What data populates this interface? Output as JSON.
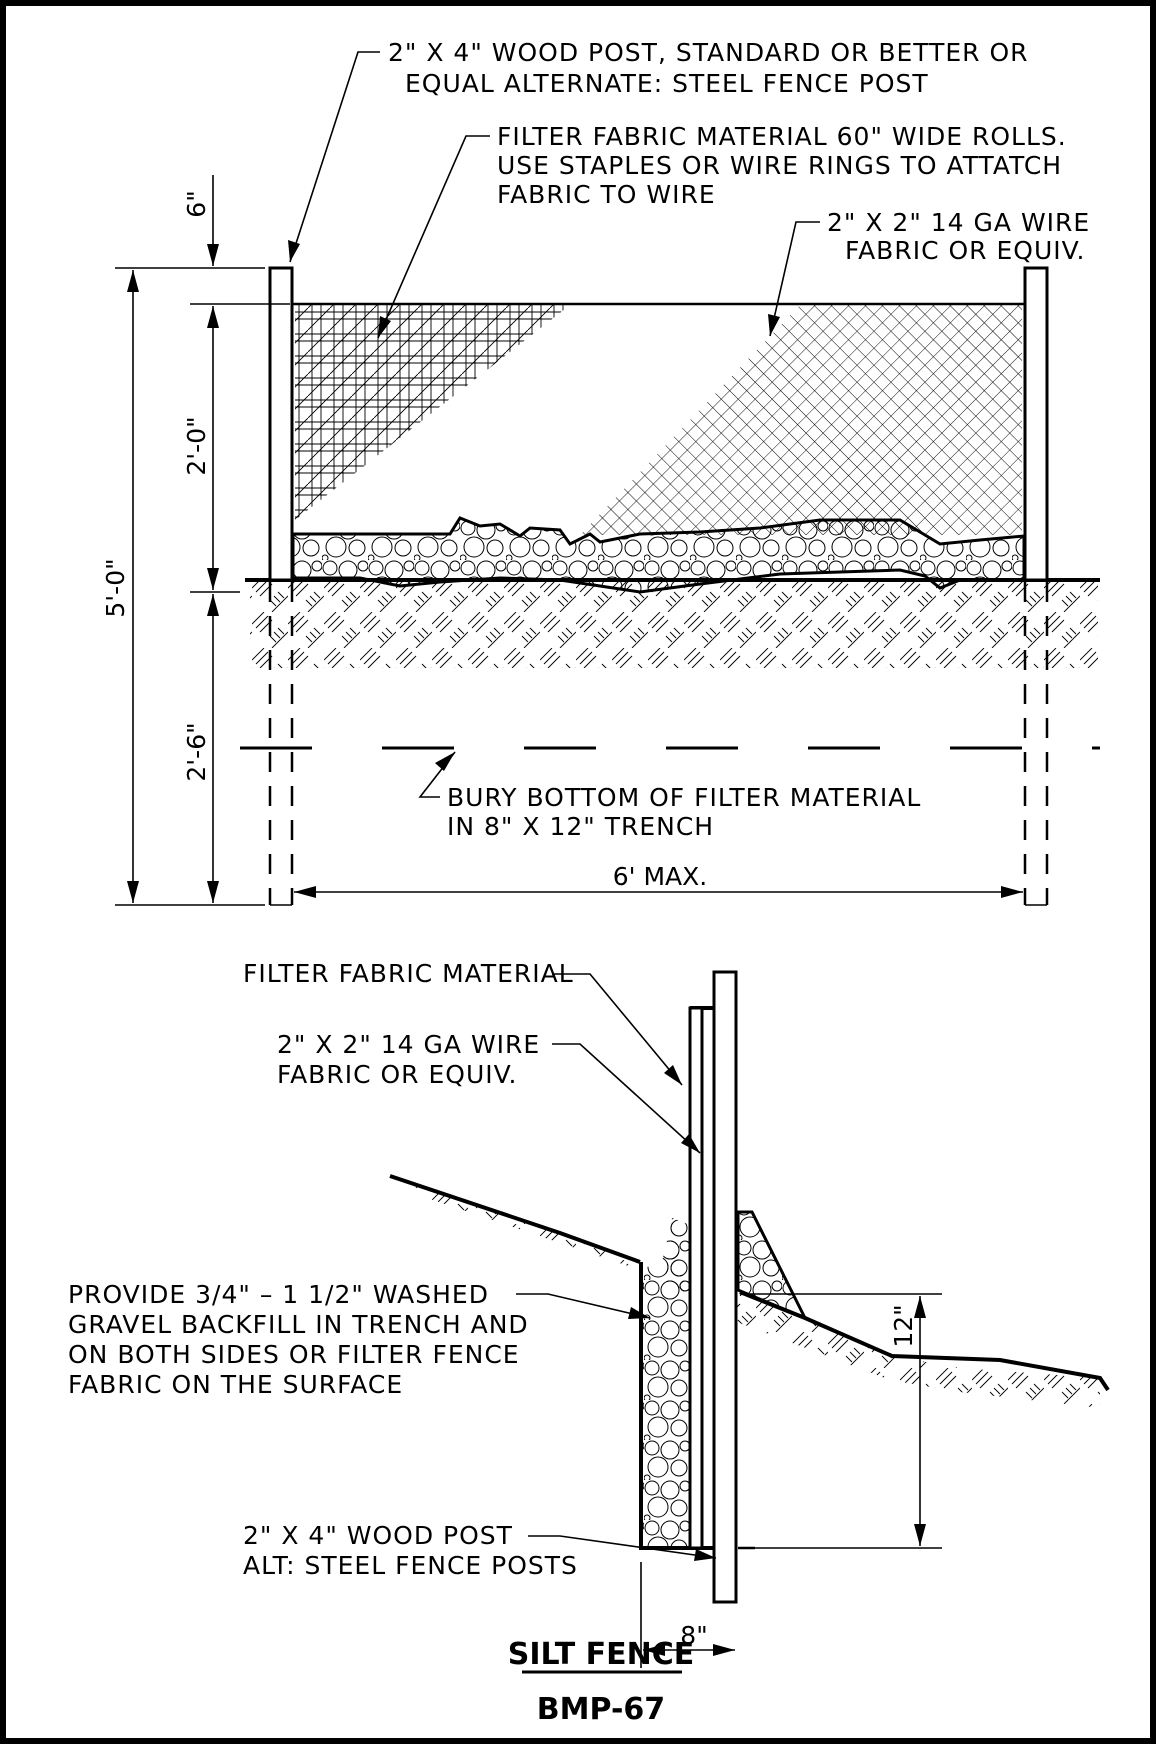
{
  "labels": {
    "post_top_1": "2\" X 4\" WOOD POST, STANDARD OR BETTER OR",
    "post_top_2": "EQUAL ALTERNATE: STEEL FENCE POST",
    "filter_1": "FILTER FABRIC MATERIAL 60\" WIDE ROLLS.",
    "filter_2": "USE STAPLES OR WIRE RINGS TO ATTATCH",
    "filter_3": "FABRIC TO WIRE",
    "wire_1": "2\" X 2\" 14 GA WIRE",
    "wire_2": "FABRIC OR EQUIV.",
    "bury_1": "BURY BOTTOM OF FILTER MATERIAL",
    "bury_2": "IN 8\" X 12\" TRENCH",
    "sec_filter": "FILTER FABRIC MATERIAL",
    "sec_wire_1": "2\" X 2\" 14 GA WIRE",
    "sec_wire_2": "FABRIC OR EQUIV.",
    "gravel_1": "PROVIDE 3/4\" – 1 1/2\" WASHED",
    "gravel_2": "GRAVEL BACKFILL IN TRENCH AND",
    "gravel_3": "ON BOTH SIDES OR FILTER FENCE",
    "gravel_4": "FABRIC ON THE SURFACE",
    "post_bot_1": "2\" X 4\" WOOD POST",
    "post_bot_2": "ALT: STEEL FENCE POSTS"
  },
  "dimensions": {
    "six_in": "6\"",
    "two_ft": "2'-0\"",
    "five_ft": "5'-0\"",
    "two_ft_six": "2'-6\"",
    "six_max": "6' MAX.",
    "eight_in": "8\"",
    "twelve_in": "12\""
  },
  "title": {
    "name": "SILT FENCE",
    "code": "BMP-67"
  }
}
